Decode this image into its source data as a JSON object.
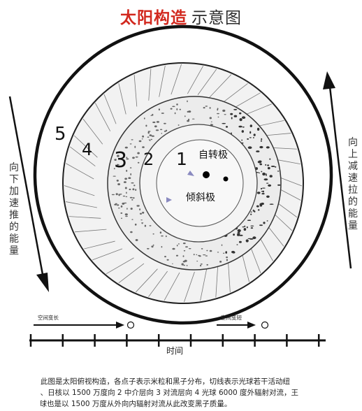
{
  "title": {
    "part1": "太阳构造",
    "part2": "示意图"
  },
  "layers": [
    {
      "num": "1",
      "label": "自转极"
    },
    {
      "num": "2"
    },
    {
      "num": "3"
    },
    {
      "num": "4"
    },
    {
      "num": "5"
    }
  ],
  "tilted_pole_label": "倾斜极",
  "side_labels": {
    "left": "向下加速推的能量",
    "right": "向上减速拉的能量"
  },
  "timeline": {
    "arrow_left_label": "空间变长",
    "arrow_right_label": "空间变短",
    "axis_label": "时间"
  },
  "caption": {
    "line1": "此图是太阳俯视构造，各点子表示米粒和黑子分布，切线表示光球若干活动纽",
    "line2": "1、日核以 1500 万度向 2 中介层向 3 对流层向 4 光球 6000 度外辐射对流，王",
    "line3": "色球也是以 1500 万度从外向内辐射对流从此改变黑子质量。"
  },
  "colors": {
    "title_red": "#d2281e",
    "ink": "#111111"
  }
}
